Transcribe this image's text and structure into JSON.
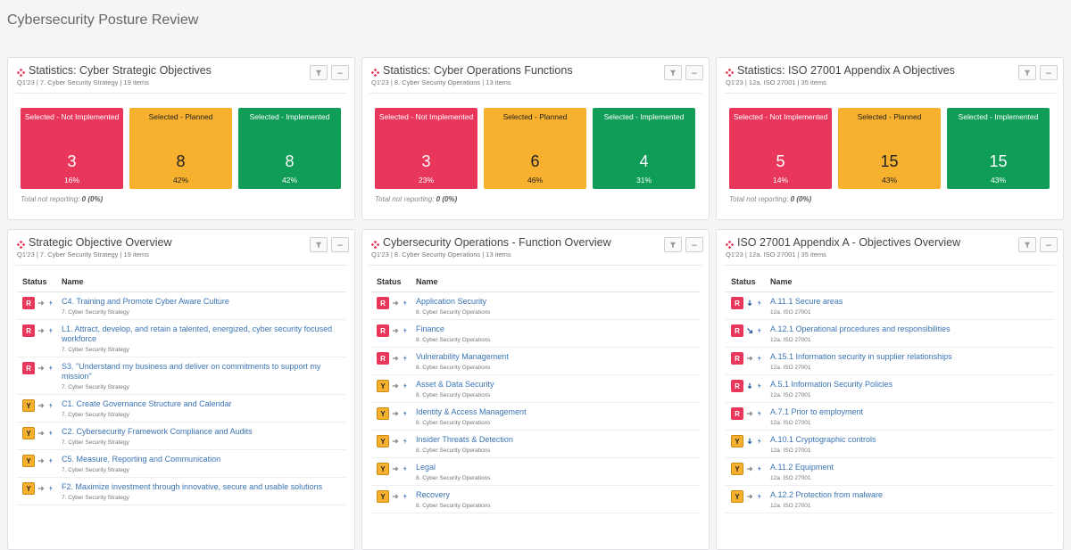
{
  "page_title": "Cybersecurity Posture Review",
  "icons": {
    "panel": "diamond-icon",
    "filter": "filter-icon",
    "minimize": "minimize-icon",
    "trend": "pulse-icon"
  },
  "colors": {
    "red": "#e8375a",
    "amber": "#f7b12e",
    "green": "#0f9d58",
    "link": "#3a74b5"
  },
  "stats_panels": [
    {
      "title": "Statistics: Cyber Strategic Objectives",
      "subtitle": "Q1'23 | 7. Cyber Security Strategy | 19 items",
      "tiles": [
        {
          "label": "Selected - Not Implemented",
          "value": "3",
          "pct": "16%"
        },
        {
          "label": "Selected - Planned",
          "value": "8",
          "pct": "42%"
        },
        {
          "label": "Selected - Implemented",
          "value": "8",
          "pct": "42%"
        }
      ],
      "not_reporting_label": "Total not reporting: ",
      "not_reporting_value": "0 (0%)"
    },
    {
      "title": "Statistics: Cyber Operations Functions",
      "subtitle": "Q1'23 | 8. Cyber Security Operations | 13 items",
      "tiles": [
        {
          "label": "Selected - Not Implemented",
          "value": "3",
          "pct": "23%"
        },
        {
          "label": "Selected - Planned",
          "value": "6",
          "pct": "46%"
        },
        {
          "label": "Selected - Implemented",
          "value": "4",
          "pct": "31%"
        }
      ],
      "not_reporting_label": "Total not reporting: ",
      "not_reporting_value": "0 (0%)"
    },
    {
      "title": "Statistics: ISO 27001 Appendix A Objectives",
      "subtitle": "Q1'23 | 12a. ISO 27001 | 35 items",
      "tiles": [
        {
          "label": "Selected - Not Implemented",
          "value": "5",
          "pct": "14%"
        },
        {
          "label": "Selected - Planned",
          "value": "15",
          "pct": "43%"
        },
        {
          "label": "Selected - Implemented",
          "value": "15",
          "pct": "43%"
        }
      ],
      "not_reporting_label": "Total not reporting: ",
      "not_reporting_value": "0 (0%)"
    }
  ],
  "overview_panels": [
    {
      "title": "Strategic Objective Overview",
      "subtitle": "Q1'23 | 7. Cyber Security Strategy | 19 items",
      "col_status": "Status",
      "col_name": "Name",
      "rows": [
        {
          "status": "R",
          "arrow": "right",
          "name": "C4. Training and Promote Cyber Aware Culture",
          "category": "7. Cyber Security Strategy"
        },
        {
          "status": "R",
          "arrow": "right",
          "name": "L1. Attract, develop, and retain a talented, energized, cyber security focused workforce",
          "category": "7. Cyber Security Strategy"
        },
        {
          "status": "R",
          "arrow": "right",
          "name": "S3. \"Understand my business and deliver on commitments to support my mission\"",
          "category": "7. Cyber Security Strategy"
        },
        {
          "status": "Y",
          "arrow": "right",
          "name": "C1. Create Governance Structure and Calendar",
          "category": "7. Cyber Security Strategy"
        },
        {
          "status": "Y",
          "arrow": "right",
          "name": "C2. Cybersecurity Framework Compliance and Audits",
          "category": "7. Cyber Security Strategy"
        },
        {
          "status": "Y",
          "arrow": "right",
          "name": "C5. Measure, Reporting and Communication",
          "category": "7. Cyber Security Strategy"
        },
        {
          "status": "Y",
          "arrow": "right",
          "name": "F2. Maximize investment through innovative, secure and usable solutions",
          "category": "7. Cyber Security Strategy"
        }
      ]
    },
    {
      "title": "Cybersecurity Operations - Function Overview",
      "subtitle": "Q1'23 | 8. Cyber Security Operations | 13 items",
      "col_status": "Status",
      "col_name": "Name",
      "rows": [
        {
          "status": "R",
          "arrow": "right",
          "name": "Application Security",
          "category": "8. Cyber Security Operations"
        },
        {
          "status": "R",
          "arrow": "right",
          "name": "Finance",
          "category": "8. Cyber Security Operations"
        },
        {
          "status": "R",
          "arrow": "right",
          "name": "Vulnerability Management",
          "category": "8. Cyber Security Operations"
        },
        {
          "status": "Y",
          "arrow": "right",
          "name": "Asset & Data Security",
          "category": "8. Cyber Security Operations"
        },
        {
          "status": "Y",
          "arrow": "right",
          "name": "Identity & Access Management",
          "category": "8. Cyber Security Operations"
        },
        {
          "status": "Y",
          "arrow": "right",
          "name": "Insider Threats & Detection",
          "category": "8. Cyber Security Operations"
        },
        {
          "status": "Y",
          "arrow": "right",
          "name": "Legal",
          "category": "8. Cyber Security Operations"
        },
        {
          "status": "Y",
          "arrow": "right",
          "name": "Recovery",
          "category": "8. Cyber Security Operations"
        }
      ]
    },
    {
      "title": "ISO 27001 Appendix A - Objectives Overview",
      "subtitle": "Q1'23 | 12a. ISO 27001 | 35 items",
      "col_status": "Status",
      "col_name": "Name",
      "rows": [
        {
          "status": "R",
          "arrow": "down",
          "name": "A.11.1 Secure areas",
          "category": "12a. ISO 27001"
        },
        {
          "status": "R",
          "arrow": "down-right",
          "name": "A.12.1 Operational procedures and responsibilities",
          "category": "12a. ISO 27001"
        },
        {
          "status": "R",
          "arrow": "right",
          "name": "A.15.1 Information security in supplier relationships",
          "category": "12a. ISO 27001"
        },
        {
          "status": "R",
          "arrow": "down",
          "name": "A.5.1 Information Security Policies",
          "category": "12a. ISO 27001"
        },
        {
          "status": "R",
          "arrow": "right",
          "name": "A.7.1 Prior to employment",
          "category": "12a. ISO 27001"
        },
        {
          "status": "Y",
          "arrow": "down",
          "name": "A.10.1 Cryptographic controls",
          "category": "12a. ISO 27001"
        },
        {
          "status": "Y",
          "arrow": "right",
          "name": "A.11.2 Equipment",
          "category": "12a. ISO 27001"
        },
        {
          "status": "Y",
          "arrow": "right",
          "name": "A.12.2 Protection from malware",
          "category": "12a. ISO 27001"
        }
      ]
    }
  ]
}
